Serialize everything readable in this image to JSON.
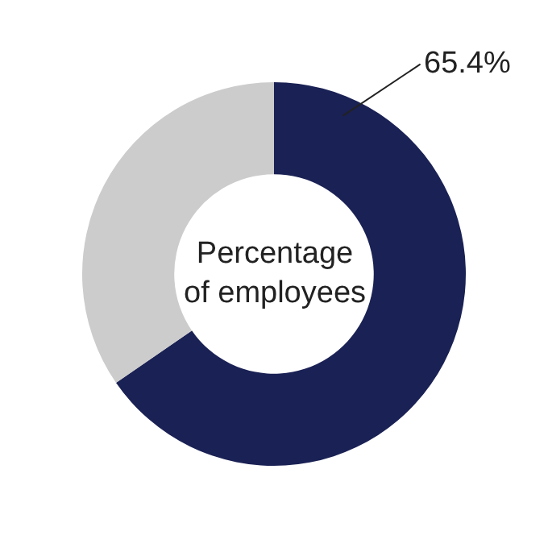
{
  "chart_data": {
    "type": "donut",
    "title": "Percentage\nof employees",
    "categories": [
      null,
      null
    ],
    "values": [
      65.4,
      34.6
    ],
    "colors": [
      "#1a2154",
      "#cccccc"
    ],
    "value_labels": [
      "65.4%",
      null
    ]
  }
}
